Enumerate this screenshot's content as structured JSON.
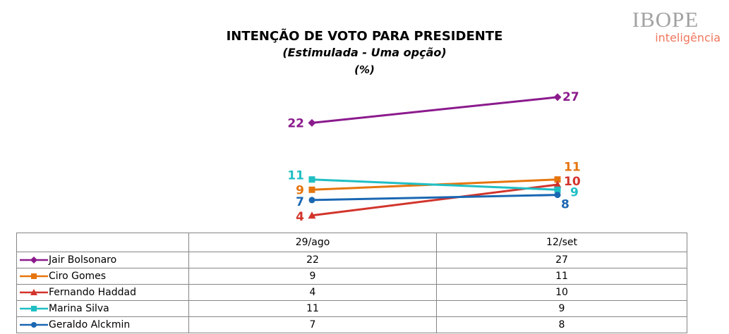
{
  "logo": {
    "name": "IBOPE",
    "subtitle": "inteligência"
  },
  "chart_data": {
    "type": "line",
    "title": "INTENÇÃO DE VOTO PARA PRESIDENTE",
    "subtitle": "(Estimulada - Uma opção)",
    "unit_label": "(%)",
    "categories": [
      "29/ago",
      "12/set"
    ],
    "series": [
      {
        "name": "Jair Bolsonaro",
        "values": [
          22,
          27
        ],
        "color": "#8B1A8D",
        "marker": "diamond"
      },
      {
        "name": "Ciro Gomes",
        "values": [
          9,
          11
        ],
        "color": "#E6750E",
        "marker": "square"
      },
      {
        "name": "Fernando Haddad",
        "values": [
          4,
          10
        ],
        "color": "#D2342C",
        "marker": "triangle"
      },
      {
        "name": "Marina Silva",
        "values": [
          11,
          9
        ],
        "color": "#1FBFC4",
        "marker": "square"
      },
      {
        "name": "Geraldo Alckmin",
        "values": [
          7,
          8
        ],
        "color": "#1A67B2",
        "marker": "circle"
      }
    ],
    "data_labels": true,
    "grid": false,
    "axes_visible": false,
    "legend_position": "table-rows",
    "ylim": [
      0,
      30
    ]
  }
}
